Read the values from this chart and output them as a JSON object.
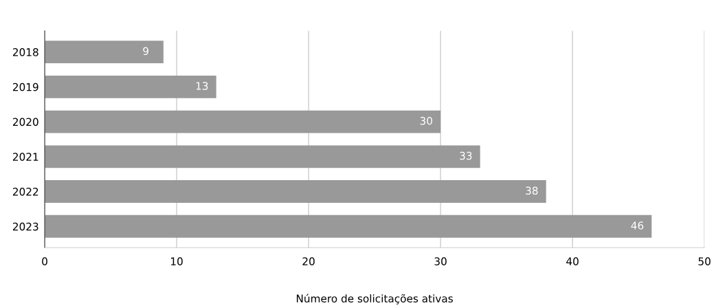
{
  "chart_data": {
    "type": "bar",
    "orientation": "horizontal",
    "xlabel": "Número de solicitações ativas",
    "categories": [
      "2018",
      "2019",
      "2020",
      "2021",
      "2022",
      "2023"
    ],
    "values": [
      9,
      13,
      30,
      33,
      38,
      46
    ],
    "color": "#999999",
    "xlim": [
      0,
      50
    ],
    "xticks": [
      0,
      10,
      20,
      30,
      40,
      50
    ],
    "grid": "x",
    "data_labels": true,
    "legend": false
  }
}
